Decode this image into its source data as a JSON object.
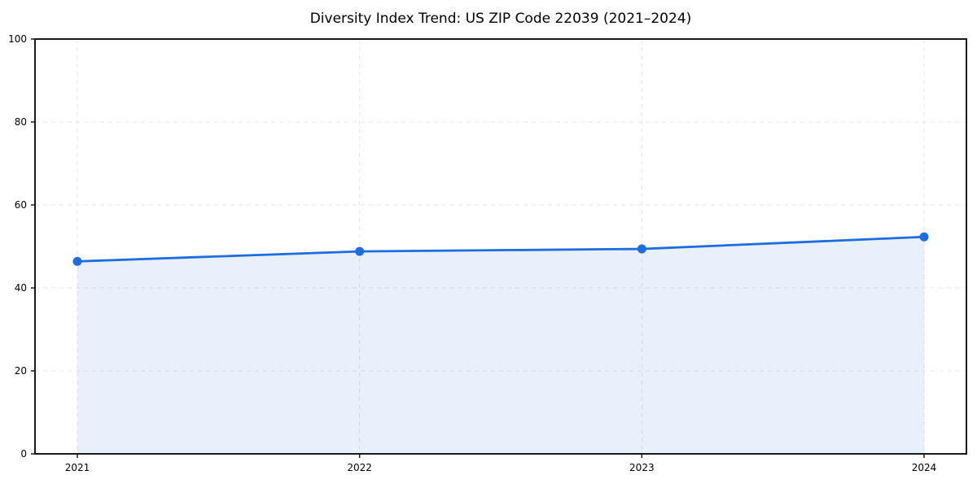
{
  "chart_data": {
    "type": "line",
    "title": "Diversity Index Trend: US ZIP Code 22039 (2021–2024)",
    "categories": [
      "2021",
      "2022",
      "2023",
      "2024"
    ],
    "series": [
      {
        "name": "Diversity Index",
        "values": [
          46.4,
          48.8,
          49.4,
          52.3
        ]
      }
    ],
    "xlabel": "",
    "ylabel": "",
    "ylim": [
      0,
      100
    ],
    "yticks": [
      0,
      20,
      40,
      60,
      80,
      100
    ],
    "grid": true,
    "grid_style": "dashed",
    "legend": "none",
    "area_fill": true,
    "style": {
      "line_color": "#1d6ce2",
      "marker_color": "#1d6ce2",
      "area_color": "rgba(29, 108, 226, 0.10)",
      "grid_color": "#e4e4e8",
      "spine_color": "#1a1a1a",
      "tick_color": "#1a1a1a",
      "background": "#ffffff"
    }
  }
}
